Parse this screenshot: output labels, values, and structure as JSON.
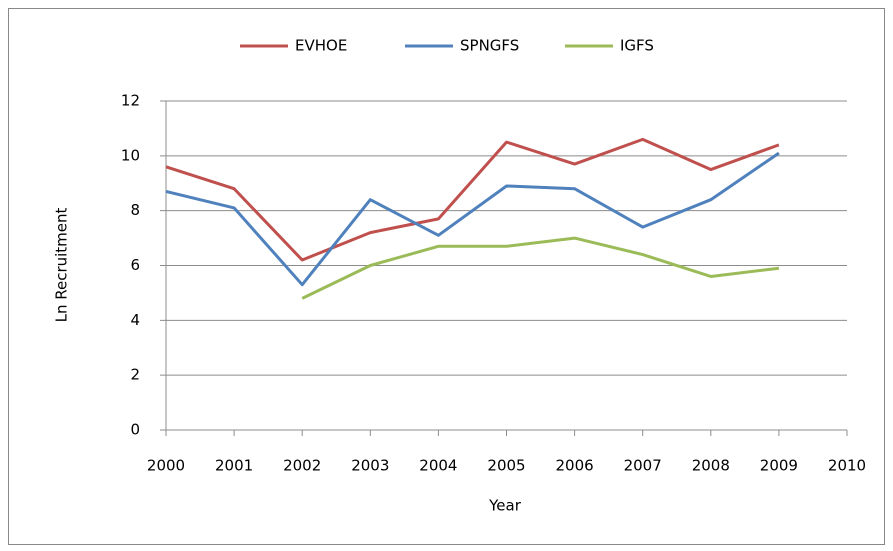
{
  "chart_data": {
    "type": "line",
    "x_label": "Year",
    "y_label": "Ln  Recruitment",
    "x": [
      2000,
      2001,
      2002,
      2003,
      2004,
      2005,
      2006,
      2007,
      2008,
      2009
    ],
    "series": [
      {
        "name": "EVHOE",
        "color": "#c0504d",
        "values": [
          9.6,
          8.8,
          6.2,
          7.2,
          7.7,
          10.5,
          9.7,
          10.6,
          9.5,
          10.4
        ]
      },
      {
        "name": "SPNGFS",
        "color": "#4f81bd",
        "values": [
          8.7,
          8.1,
          5.3,
          8.4,
          7.1,
          8.9,
          8.8,
          7.4,
          8.4,
          10.1
        ]
      },
      {
        "name": "IGFS",
        "color": "#9bbb59",
        "values": [
          null,
          null,
          4.8,
          6.0,
          6.7,
          6.7,
          7.0,
          6.4,
          5.6,
          5.9
        ]
      }
    ],
    "xlim": [
      2000,
      2010
    ],
    "xticks": [
      2000,
      2001,
      2002,
      2003,
      2004,
      2005,
      2006,
      2007,
      2008,
      2009,
      2010
    ],
    "ylim": [
      0,
      12
    ],
    "yticks": [
      0,
      2,
      4,
      6,
      8,
      10,
      12
    ],
    "grid": true,
    "legend": "top"
  }
}
